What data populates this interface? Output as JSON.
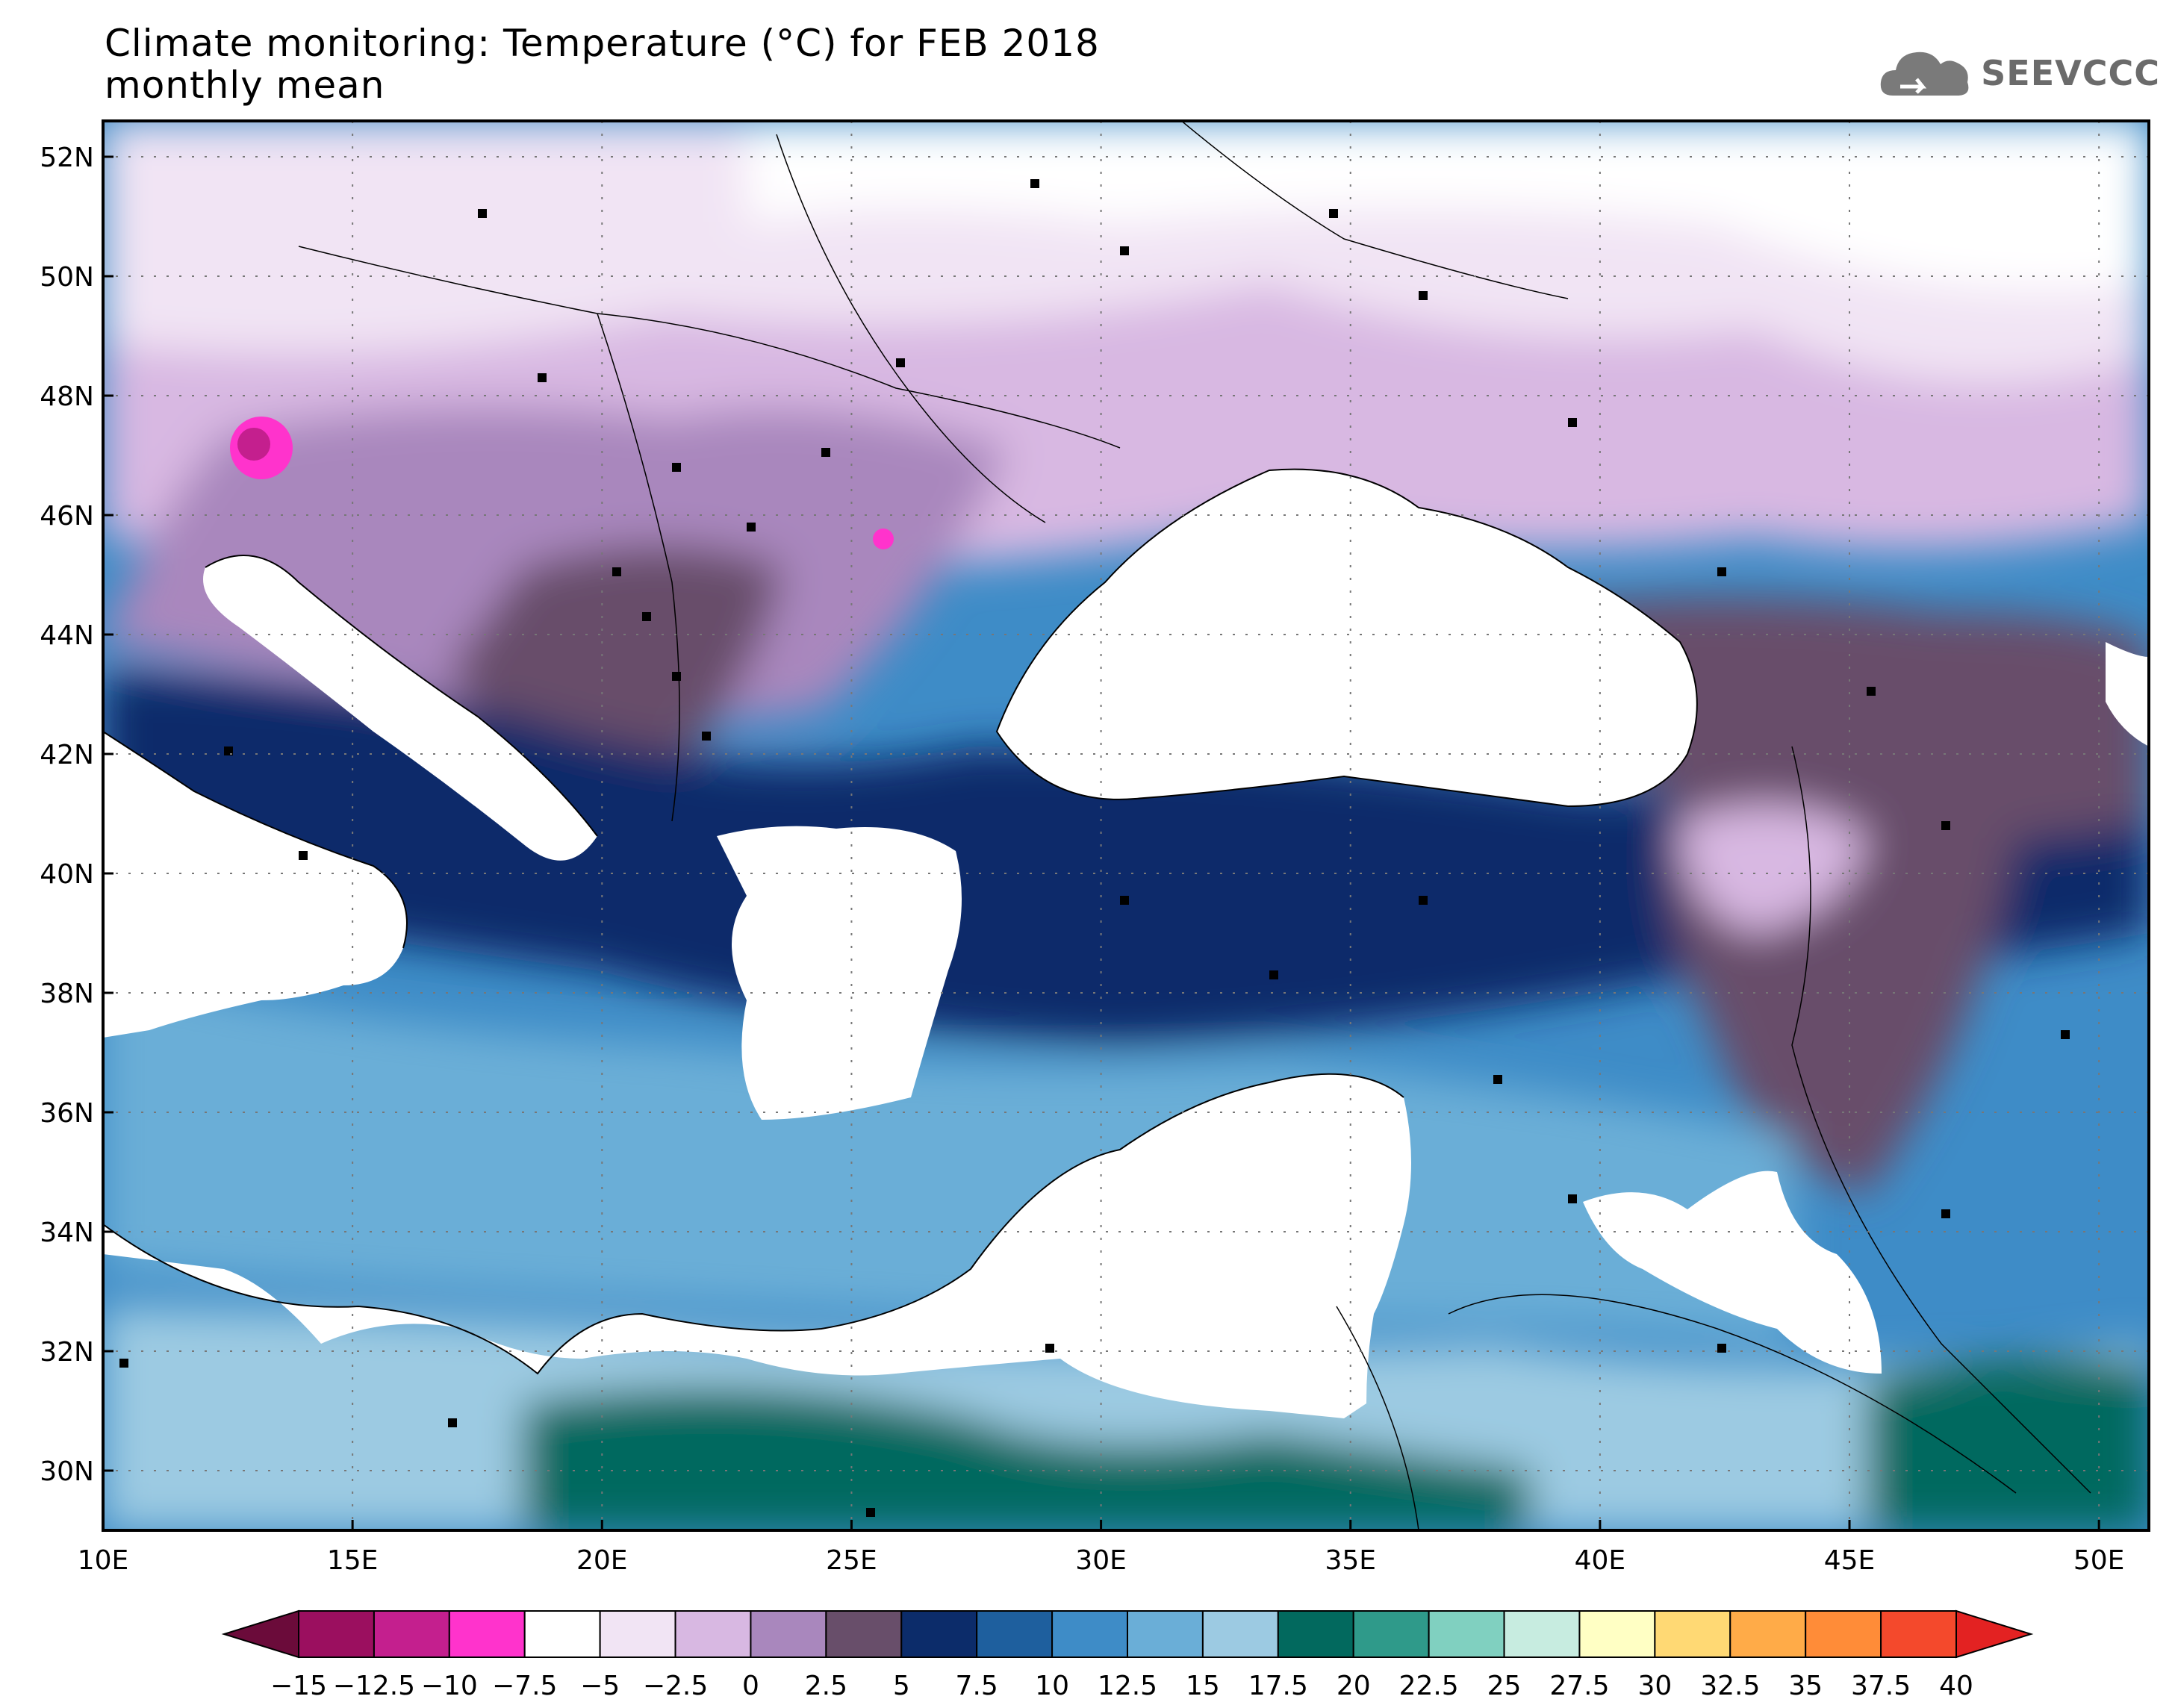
{
  "title": {
    "line1": "Climate monitoring: Temperature (°C) for FEB 2018",
    "line2": "monthly mean"
  },
  "logo": {
    "text": "SEEVCCC",
    "icon": "cloud-icon"
  },
  "map": {
    "lon_range": [
      10,
      51
    ],
    "lat_range": [
      29,
      52.6
    ],
    "x_ticks": [
      "10E",
      "15E",
      "20E",
      "25E",
      "30E",
      "35E",
      "40E",
      "45E",
      "50E"
    ],
    "y_ticks": [
      "52N",
      "50N",
      "48N",
      "46N",
      "44N",
      "42N",
      "40N",
      "38N",
      "36N",
      "34N",
      "32N",
      "30N"
    ],
    "gridlines": true,
    "grid_style": "dotted"
  },
  "colorbar": {
    "labels": [
      "−15",
      "−12.5",
      "−10",
      "−7.5",
      "−5",
      "−2.5",
      "0",
      "2.5",
      "5",
      "7.5",
      "10",
      "12.5",
      "15",
      "17.5",
      "20",
      "22.5",
      "25",
      "27.5",
      "30",
      "32.5",
      "35",
      "37.5",
      "40"
    ],
    "colors": [
      "#9b0f5f",
      "#c41f8e",
      "#ff33cc",
      "#ffffff",
      "#f1e4f4",
      "#d8b8e2",
      "#a987bd",
      "#684e6a",
      "#0c2c6a",
      "#1e5f9e",
      "#3e8cc7",
      "#6aaed7",
      "#9ccae2",
      "#02695e",
      "#2f9a8a",
      "#80d0c0",
      "#c7ece0",
      "#ffffc4",
      "#ffd974",
      "#ffab48",
      "#ff8c38",
      "#f4492c"
    ],
    "low_end_color": "#6b0b3a",
    "high_end_color": "#e32222"
  }
}
